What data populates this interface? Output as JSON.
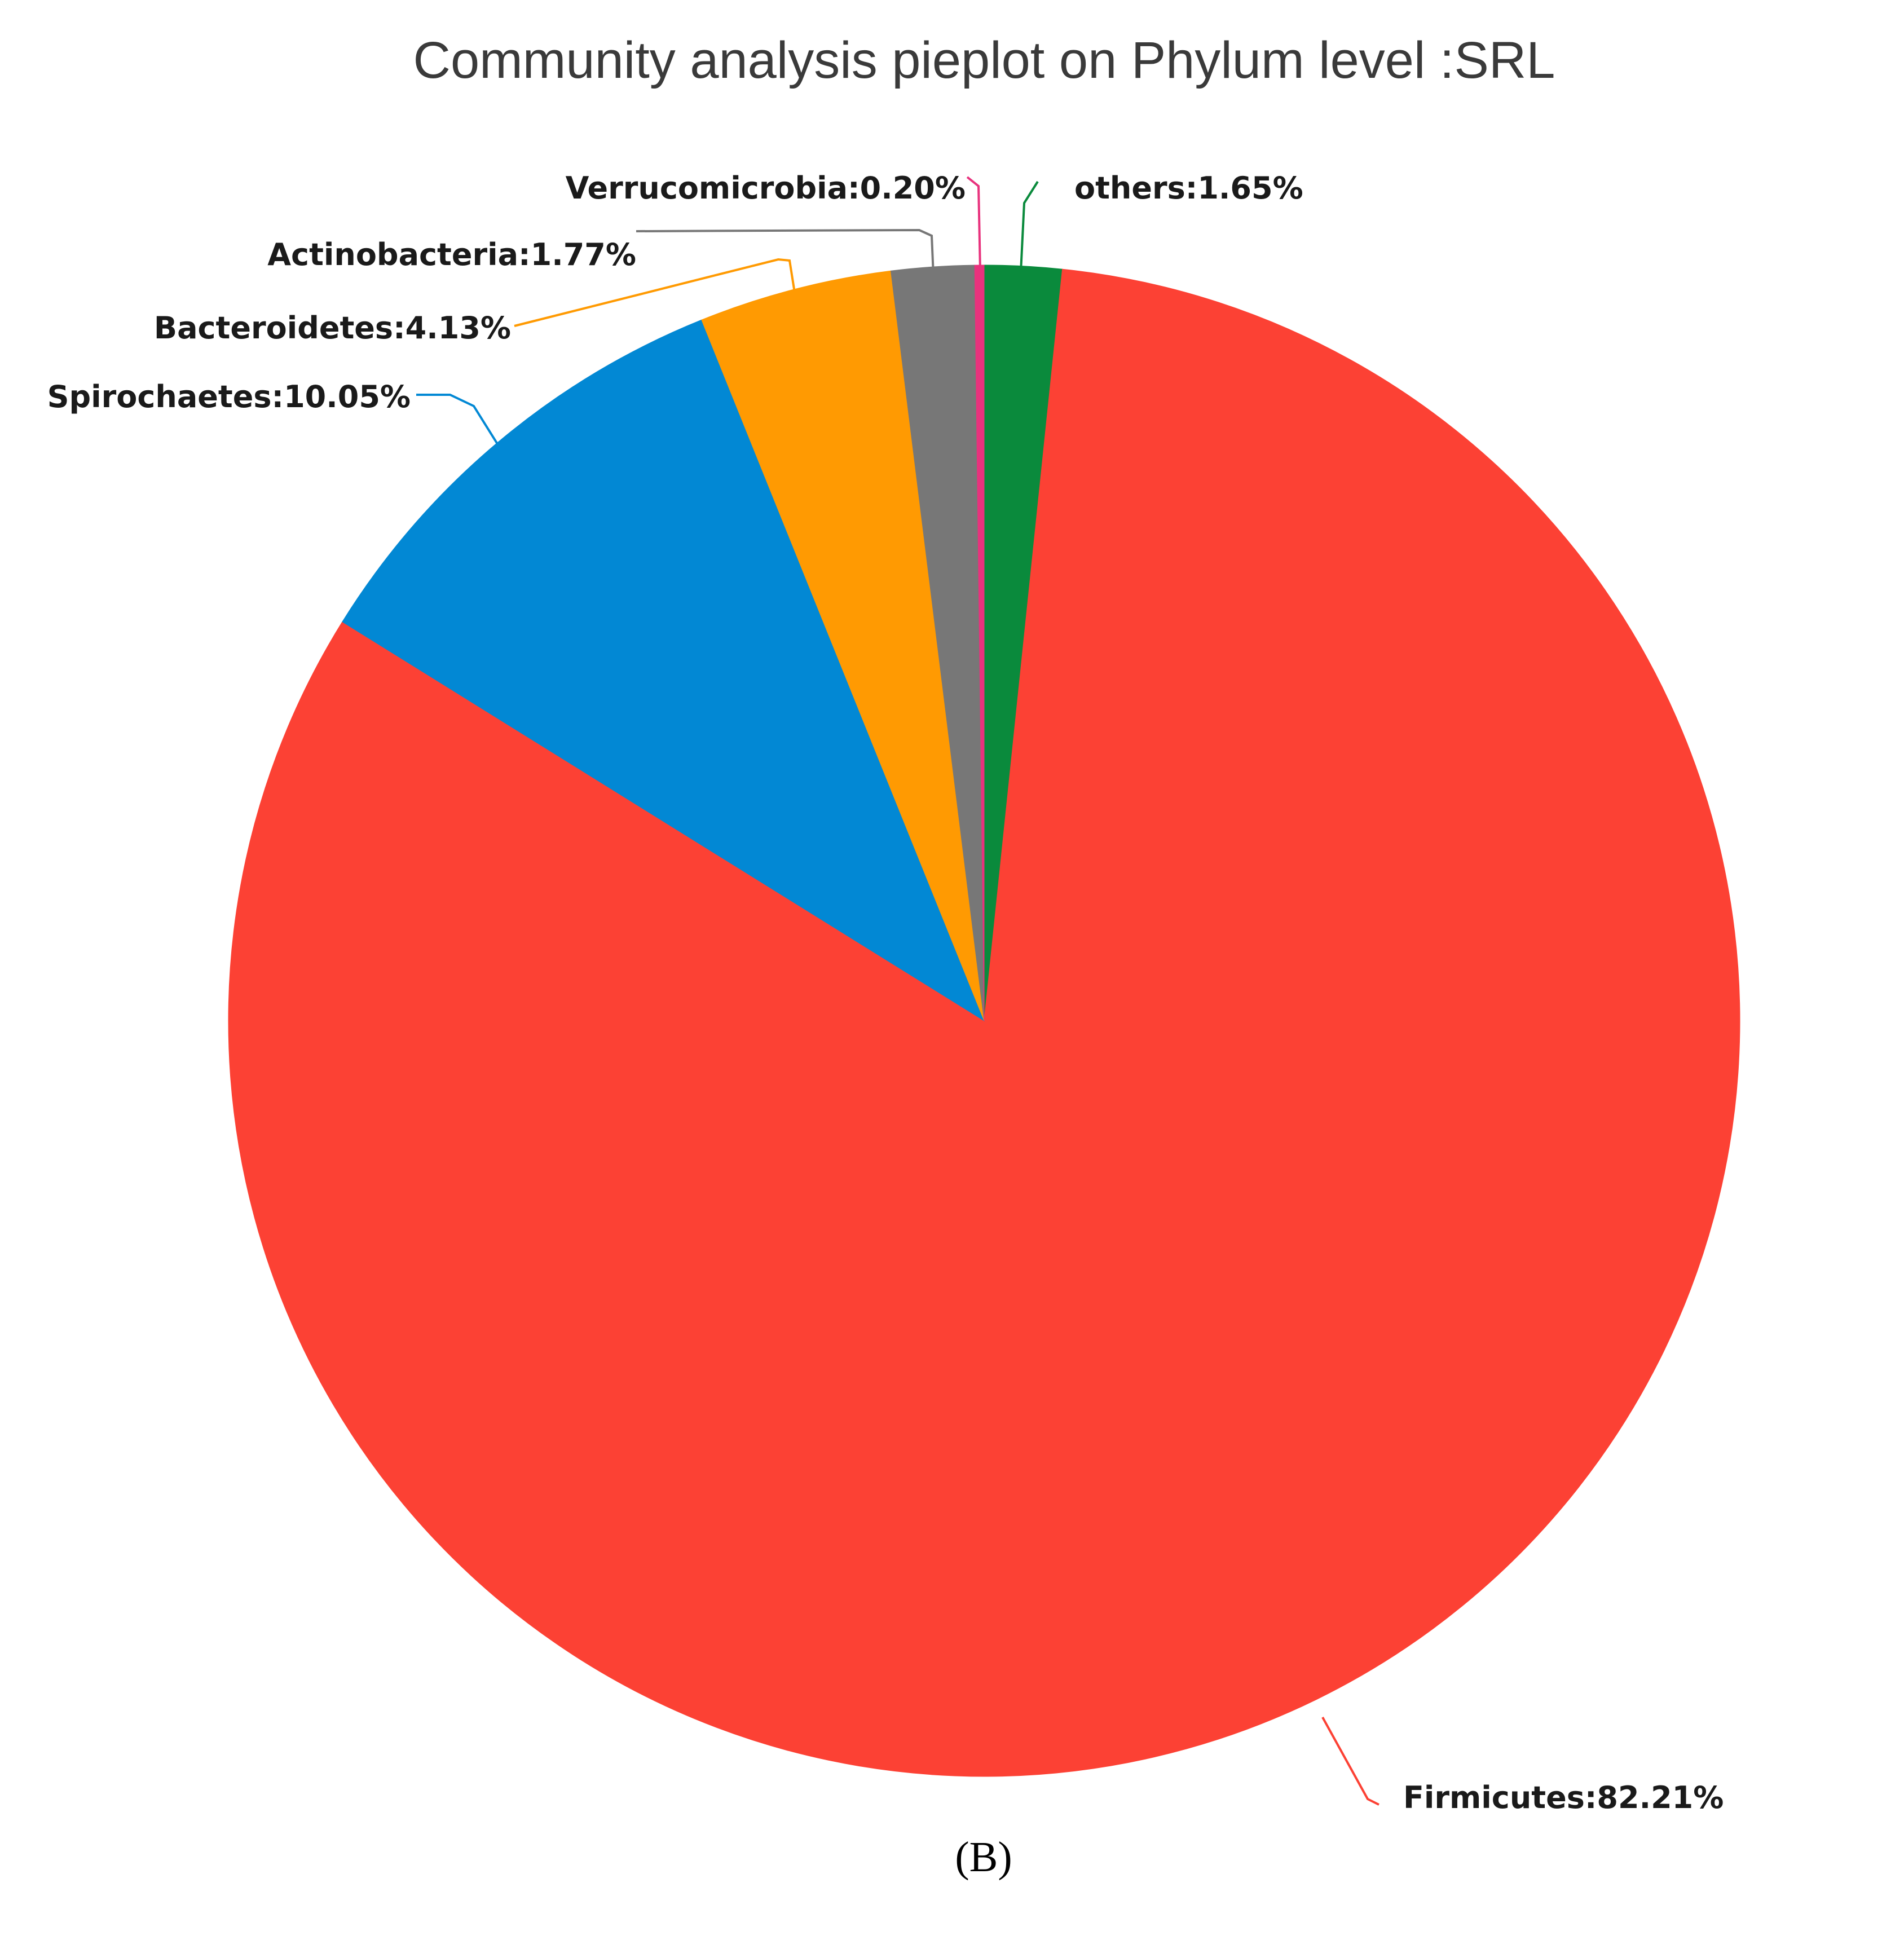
{
  "chart_data": {
    "type": "pie",
    "title": "Community analysis pieplot on Phylum level :SRL",
    "start_angle_deg": 0,
    "direction": "clockwise",
    "slices": [
      {
        "name": "others",
        "value": 1.65,
        "label": "others:1.65%",
        "color": "#0a8a3c"
      },
      {
        "name": "Firmicutes",
        "value": 82.21,
        "label": "Firmicutes:82.21%",
        "color": "#fc4134"
      },
      {
        "name": "Spirochaetes",
        "value": 10.05,
        "label": "Spirochaetes:10.05%",
        "color": "#0288d4"
      },
      {
        "name": "Bacteroidetes",
        "value": 4.13,
        "label": "Bacteroidetes:4.13%",
        "color": "#ff9a02"
      },
      {
        "name": "Actinobacteria",
        "value": 1.77,
        "label": "Actinobacteria:1.77%",
        "color": "#777777"
      },
      {
        "name": "Verrucomicrobia",
        "value": 0.2,
        "label": "Verrucomicrobia:0.20%",
        "color": "#e8327d"
      }
    ]
  },
  "panel_label": "(B)"
}
